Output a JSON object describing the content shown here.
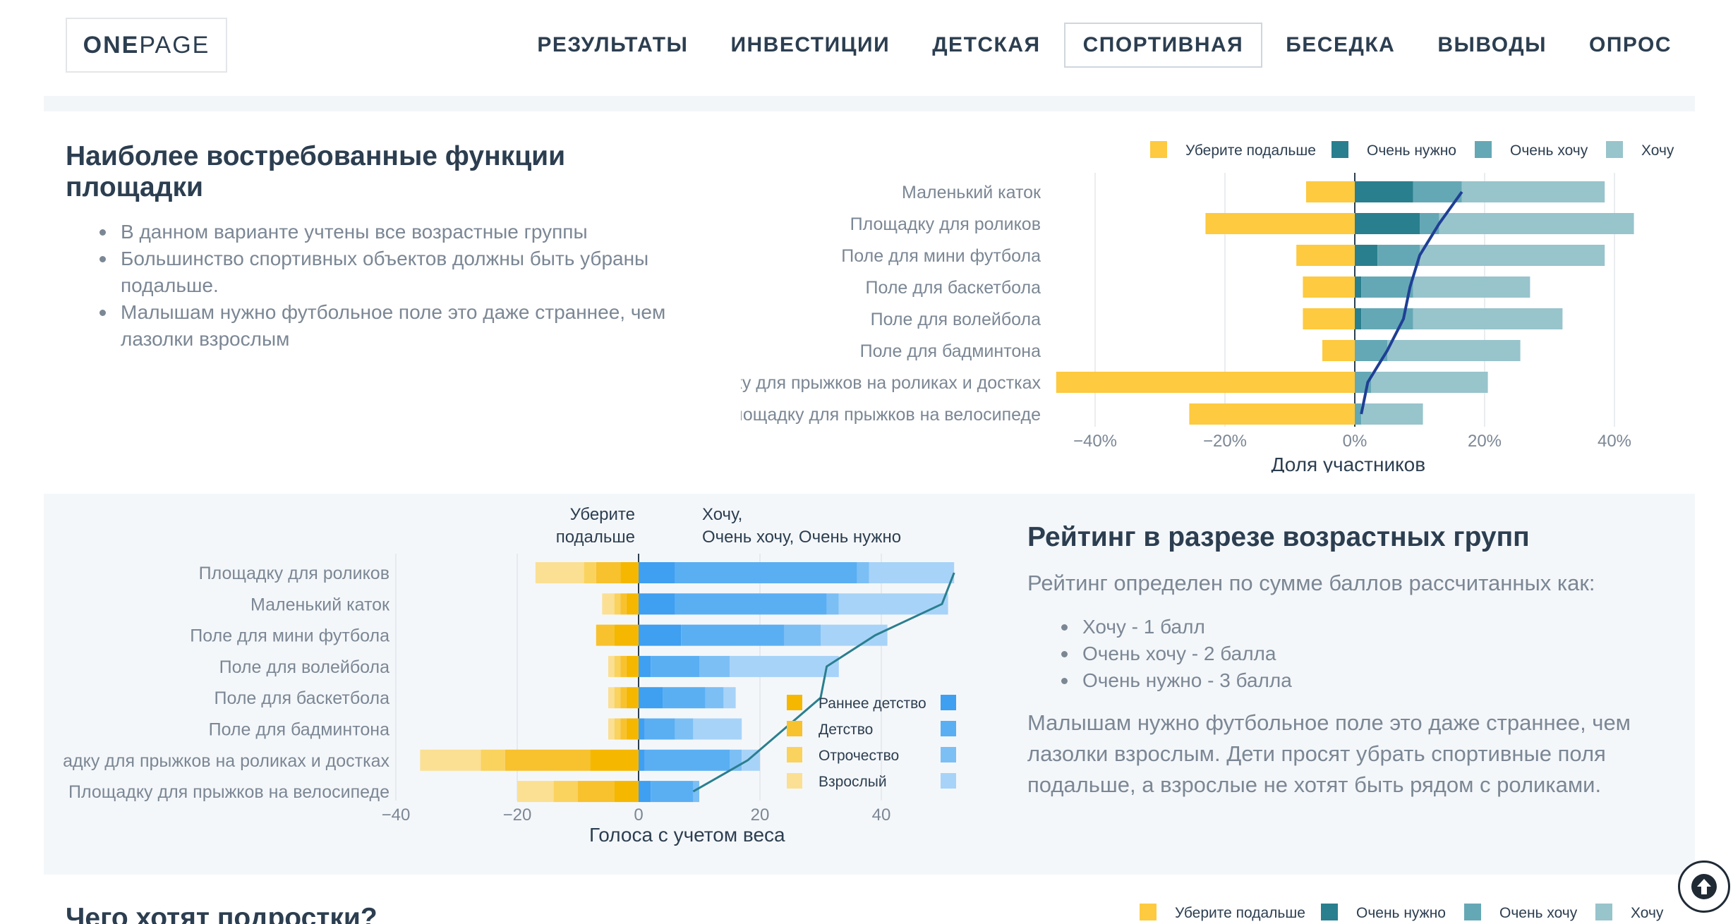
{
  "header": {
    "logo_bold": "ONE",
    "logo_rest": "PAGE",
    "nav": [
      {
        "label": "РЕЗУЛЬТАТЫ",
        "active": false
      },
      {
        "label": "ИНВЕСТИЦИИ",
        "active": false
      },
      {
        "label": "ДЕТСКАЯ",
        "active": false
      },
      {
        "label": "СПОРТИВНАЯ",
        "active": true
      },
      {
        "label": "БЕСЕДКА",
        "active": false
      },
      {
        "label": "ВЫВОДЫ",
        "active": false
      },
      {
        "label": "ОПРОС",
        "active": false
      }
    ]
  },
  "section1": {
    "title": "Наиболее востребованные функции площадки",
    "bullets": [
      "В данном варианте учтены все возрастные группы",
      "Большинство спортивных объектов должны быть убраны подальше.",
      "Малышам нужно футбольное поле это даже страннее, чем лазолки взрослым"
    ]
  },
  "section2": {
    "title": "Рейтинг в разрезе возрастных групп",
    "intro": "Рейтинг определен по сумме баллов рассчитанных как:",
    "bullets": [
      "Хочу - 1 балл",
      "Очень хочу - 2 балла",
      "Очень нужно - 3 балла"
    ],
    "note": "Малышам нужно футбольное поле это даже страннее, чем лазолки взрослым. Дети просят убрать спортивные поля подальше, а взрослые не хотят быть рядом с роликами."
  },
  "section3": {
    "title": "Чего хотят подростки?",
    "legend": [
      "Уберите подальше",
      "Очень нужно",
      "Очень хочу",
      "Хочу"
    ]
  },
  "colors": {
    "remove": "#fdca40",
    "very_need": "#2a7f8e",
    "very_want": "#65a8b5",
    "want": "#98c4cc",
    "line": "#1f3f95",
    "age_early": "#f5b700",
    "age_child": "#f8c12e",
    "age_teen": "#fad25e",
    "age_adult": "#fbe093",
    "blue_early": "#3f9ff0",
    "blue_child": "#5aaff3",
    "blue_teen": "#7cbff5",
    "blue_adult": "#a8d3f8",
    "line2": "#2a7f8e"
  },
  "chart_data": [
    {
      "type": "bar",
      "orientation": "horizontal",
      "stacked": "diverging",
      "categories": [
        "Маленький каток",
        "Площадку для роликов",
        "Поле для мини футбола",
        "Поле для баскетбола",
        "Поле для волейбола",
        "Поле для бадминтона",
        "Площадку для прыжков на роликах и достках",
        "Площадку для прыжков на велосипеде"
      ],
      "series": [
        {
          "name": "Уберите подальше",
          "values": [
            -7.5,
            -23,
            -9,
            -8,
            -8,
            -5,
            -46,
            -25.5
          ]
        },
        {
          "name": "Очень нужно",
          "values": [
            9,
            10,
            3.5,
            1,
            1,
            0,
            0,
            0
          ]
        },
        {
          "name": "Очень хочу",
          "values": [
            7.5,
            3,
            6.5,
            8,
            8,
            5,
            2.5,
            1
          ]
        },
        {
          "name": "Хочу",
          "values": [
            22,
            30,
            28.5,
            18,
            23,
            20.5,
            18,
            9.5
          ]
        }
      ],
      "line": [
        16.5,
        13,
        10,
        8.5,
        7.5,
        5,
        2,
        1
      ],
      "xlim": [
        -46,
        43
      ],
      "xticks": [
        "−40%",
        "−20%",
        "0%",
        "20%",
        "40%"
      ],
      "xlabel": "Доля участников",
      "legend": "top-right",
      "grid": true
    },
    {
      "type": "bar",
      "orientation": "horizontal",
      "stacked": "diverging",
      "categories": [
        "Площадку для роликов",
        "Маленький каток",
        "Поле для мини футбола",
        "Поле для волейбола",
        "Поле для баскетбола",
        "Поле для бадминтона",
        "Площадку для прыжков на роликах и достках",
        "Площадку для прыжков на велосипеде"
      ],
      "series": [
        {
          "name": "Раннее детство",
          "remove": [
            -3,
            -2,
            -4,
            -2,
            -2,
            -2,
            -8,
            -4
          ],
          "want": [
            6,
            6,
            7,
            2,
            4,
            1,
            1,
            2
          ]
        },
        {
          "name": "Детство",
          "remove": [
            -4,
            -1,
            -3,
            -1,
            -1,
            -1,
            -14,
            -6
          ],
          "want": [
            30,
            25,
            17,
            8,
            7,
            5,
            14,
            7
          ]
        },
        {
          "name": "Отрочество",
          "remove": [
            -2,
            -1,
            0,
            -1,
            -1,
            -1,
            -4,
            -4
          ],
          "want": [
            2,
            2,
            6,
            5,
            3,
            3,
            2,
            1
          ]
        },
        {
          "name": "Взрослый",
          "remove": [
            -8,
            -2,
            0,
            -1,
            -1,
            -1,
            -10,
            -6
          ],
          "want": [
            14,
            18,
            11,
            18,
            2,
            8,
            3,
            0
          ]
        }
      ],
      "line": [
        52,
        50,
        39,
        31,
        30,
        24,
        18,
        9
      ],
      "label_remove": "Уберите\nподальше",
      "label_want": "Хочу,\nОчень хочу, Очень нужно",
      "xlim": [
        -40,
        52
      ],
      "xticks": [
        "−40",
        "−20",
        "0",
        "20",
        "40"
      ],
      "xlabel": "Голоса с учетом веса",
      "legend": "inside-bottom-right",
      "grid": true
    }
  ]
}
